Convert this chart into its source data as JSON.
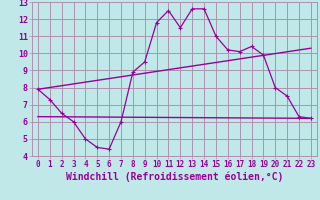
{
  "xlabel": "Windchill (Refroidissement éolien,°C)",
  "ylabel": "",
  "xlim": [
    -0.5,
    23.5
  ],
  "ylim": [
    4,
    13
  ],
  "xticks": [
    0,
    1,
    2,
    3,
    4,
    5,
    6,
    7,
    8,
    9,
    10,
    11,
    12,
    13,
    14,
    15,
    16,
    17,
    18,
    19,
    20,
    21,
    22,
    23
  ],
  "yticks": [
    4,
    5,
    6,
    7,
    8,
    9,
    10,
    11,
    12,
    13
  ],
  "bg_color": "#c0e8e8",
  "grid_color": "#b090b0",
  "line_color": "#990099",
  "line1_x": [
    0,
    1,
    2,
    3,
    4,
    5,
    6,
    7,
    8,
    9,
    10,
    11,
    12,
    13,
    14,
    15,
    16,
    17,
    18,
    19,
    20,
    21,
    22,
    23
  ],
  "line1_y": [
    7.9,
    7.3,
    6.5,
    6.0,
    5.0,
    4.5,
    4.4,
    6.0,
    8.9,
    9.5,
    11.8,
    12.5,
    11.5,
    12.6,
    12.6,
    11.0,
    10.2,
    10.1,
    10.4,
    9.9,
    8.0,
    7.5,
    6.3,
    6.2
  ],
  "line2_x": [
    0,
    23
  ],
  "line2_y": [
    7.9,
    10.3
  ],
  "line3_x": [
    0,
    23
  ],
  "line3_y": [
    6.3,
    6.2
  ],
  "font_size_xlabel": 7.0,
  "font_size_tick": 5.5,
  "marker": "+"
}
